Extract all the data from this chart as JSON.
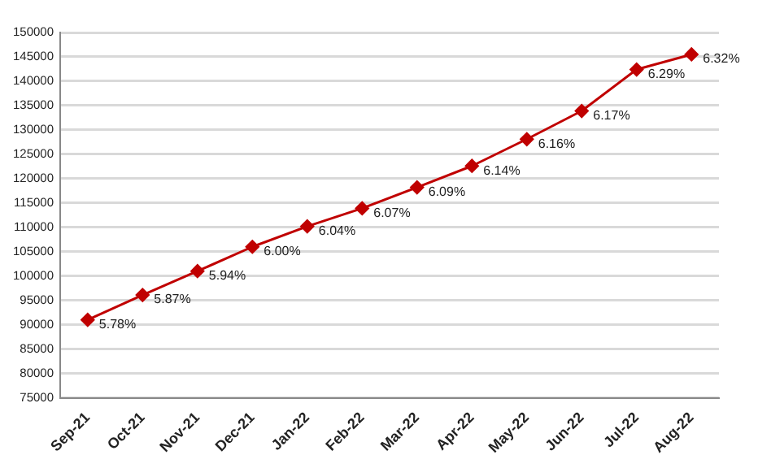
{
  "chart_data": {
    "type": "line",
    "categories": [
      "Sep-21",
      "Oct-21",
      "Nov-21",
      "Dec-21",
      "Jan-22",
      "Feb-22",
      "Mar-22",
      "Apr-22",
      "May-22",
      "Jun-22",
      "Jul-22",
      "Aug-22"
    ],
    "series": [
      {
        "color": "#c00000",
        "values": [
          91000,
          96100,
          101000,
          106000,
          110200,
          113900,
          118200,
          122600,
          128100,
          133900,
          142400,
          145500
        ]
      }
    ],
    "annotations": [
      {
        "text": "5.78%",
        "x": "Sep-21",
        "y": 91000
      },
      {
        "text": "5.87%",
        "x": "Oct-21",
        "y": 96100
      },
      {
        "text": "5.94%",
        "x": "Nov-21",
        "y": 101000
      },
      {
        "text": "6.00%",
        "x": "Dec-21",
        "y": 106000
      },
      {
        "text": "6.04%",
        "x": "Jan-22",
        "y": 110200
      },
      {
        "text": "6.07%",
        "x": "Feb-22",
        "y": 113900
      },
      {
        "text": "6.09%",
        "x": "Mar-22",
        "y": 118200
      },
      {
        "text": "6.14%",
        "x": "Apr-22",
        "y": 122600
      },
      {
        "text": "6.16%",
        "x": "May-22",
        "y": 128100
      },
      {
        "text": "6.17%",
        "x": "Jun-22",
        "y": 133900
      },
      {
        "text": "6.29%",
        "x": "Jul-22",
        "y": 142400
      },
      {
        "text": "6.32%",
        "x": "Aug-22",
        "y": 145500
      }
    ],
    "ylim": [
      75000,
      150000
    ],
    "yticks": [
      75000,
      80000,
      85000,
      90000,
      95000,
      100000,
      105000,
      110000,
      115000,
      120000,
      125000,
      130000,
      135000,
      140000,
      145000,
      150000
    ],
    "grid": "y",
    "legend": false,
    "marker": "diamond",
    "line_style": "solid"
  }
}
